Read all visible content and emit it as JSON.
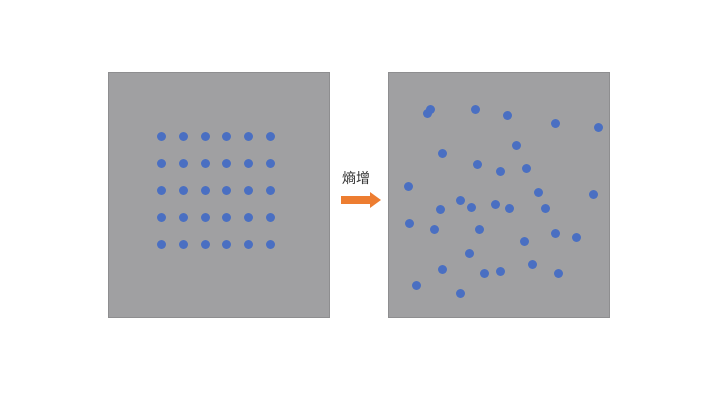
{
  "colors": {
    "panel_bg": "#a0a0a2",
    "panel_border": "#8e8e90",
    "dot": "#4a6fc2",
    "arrow": "#ed7d31"
  },
  "arrow": {
    "label": "熵增",
    "icon": "right-arrow-icon"
  },
  "before": {
    "layout": "ordered-grid",
    "rows": 5,
    "columns": 6
  },
  "after": {
    "layout": "scattered",
    "count": 34
  }
}
